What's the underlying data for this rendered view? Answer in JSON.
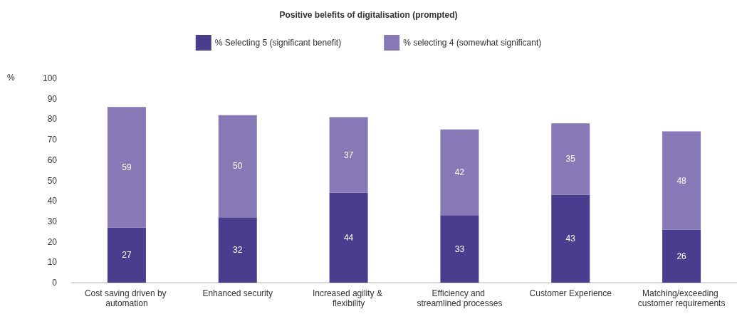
{
  "chart_data": {
    "type": "bar",
    "title": "Positive belefits of digitalisation (prompted)",
    "ylabel": "%",
    "categories": [
      "Cost saving driven by automation",
      "Enhanced security",
      "Increased agility & flexibility",
      "Efficiency and streamlined processes",
      "Customer Experience",
      "Matching/exceeding customer requirements"
    ],
    "series": [
      {
        "name": "% Selecting 5 (significant benefit)",
        "color": "#4b3d8e",
        "values": [
          27,
          32,
          44,
          33,
          43,
          26
        ]
      },
      {
        "name": "% selecting 4 (somewhat significant)",
        "color": "#8679b5",
        "values": [
          59,
          50,
          37,
          42,
          35,
          48
        ]
      }
    ],
    "stacked": true,
    "ylim": [
      0,
      100
    ],
    "yticks": [
      0,
      10,
      20,
      30,
      40,
      50,
      60,
      70,
      80,
      90,
      100
    ],
    "grid": false,
    "legend": "top",
    "data_labels": true
  }
}
